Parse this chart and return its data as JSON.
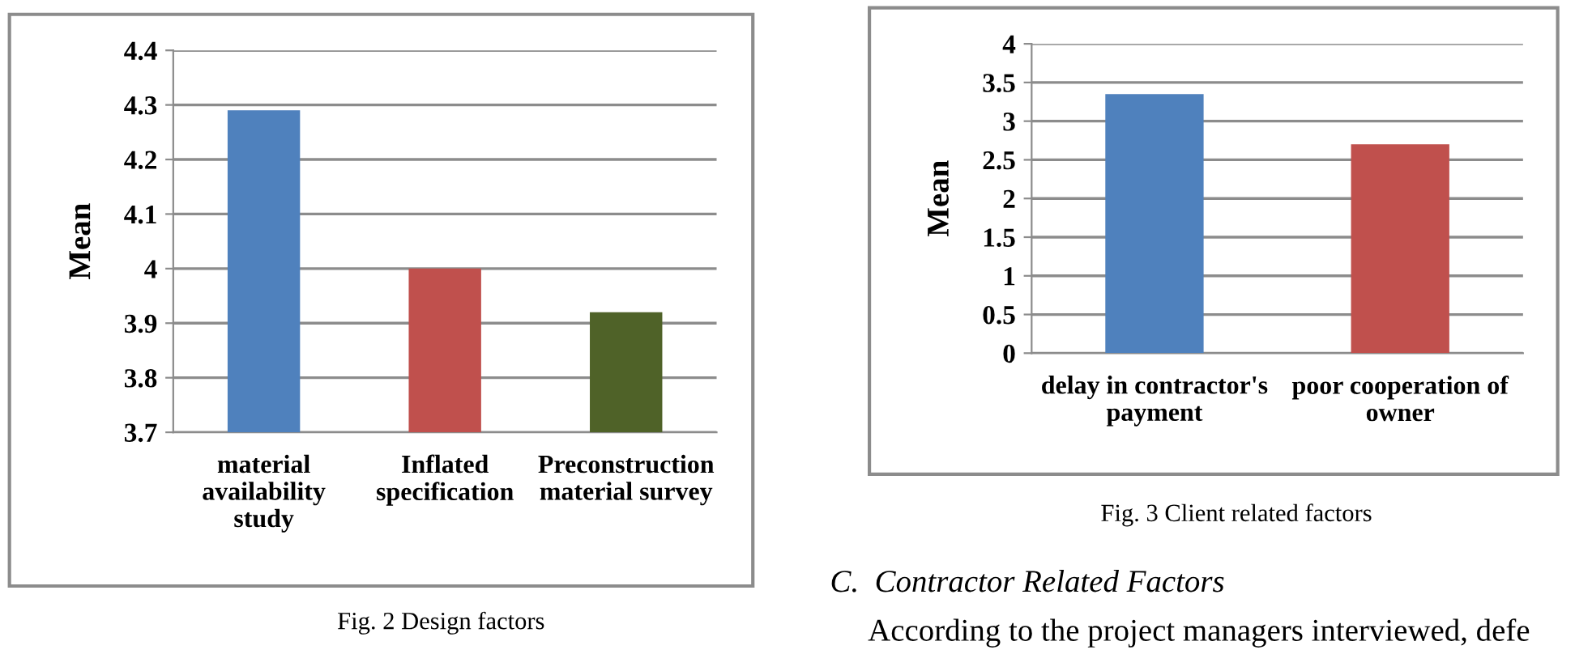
{
  "chart_data": [
    {
      "type": "bar",
      "ylabel": "Mean",
      "categories": [
        "material\navailability\nstudy",
        "Inflated\nspecification",
        "Preconstruction\nmaterial survey"
      ],
      "values": [
        4.29,
        4.0,
        3.92
      ],
      "colors": [
        "#4f81bd",
        "#c0504d",
        "#4f6228"
      ],
      "ylim": [
        3.7,
        4.4
      ],
      "yticks": [
        {
          "value": 3.7,
          "label": "3.7"
        },
        {
          "value": 3.8,
          "label": "3.8"
        },
        {
          "value": 3.9,
          "label": "3.9"
        },
        {
          "value": 4.0,
          "label": "4"
        },
        {
          "value": 4.1,
          "label": "4.1"
        },
        {
          "value": 4.2,
          "label": "4.2"
        },
        {
          "value": 4.3,
          "label": "4.3"
        },
        {
          "value": 4.4,
          "label": "4.4"
        }
      ],
      "grid": "y",
      "legend": false,
      "annotations": [
        "Fig. 2 Design factors"
      ]
    },
    {
      "type": "bar",
      "ylabel": "Mean",
      "categories": [
        "delay in contractor's\npayment",
        "poor cooperation of\nowner"
      ],
      "values": [
        3.35,
        2.7
      ],
      "colors": [
        "#4f81bd",
        "#c0504d"
      ],
      "ylim": [
        0,
        4
      ],
      "yticks": [
        0,
        0.5,
        1,
        1.5,
        2,
        2.5,
        3,
        3.5,
        4
      ],
      "grid": "y",
      "legend": false,
      "annotations": [
        "Fig. 3 Client related factors",
        "C.  Contractor Related Factors",
        "According to the project managers interviewed, defe"
      ]
    }
  ]
}
